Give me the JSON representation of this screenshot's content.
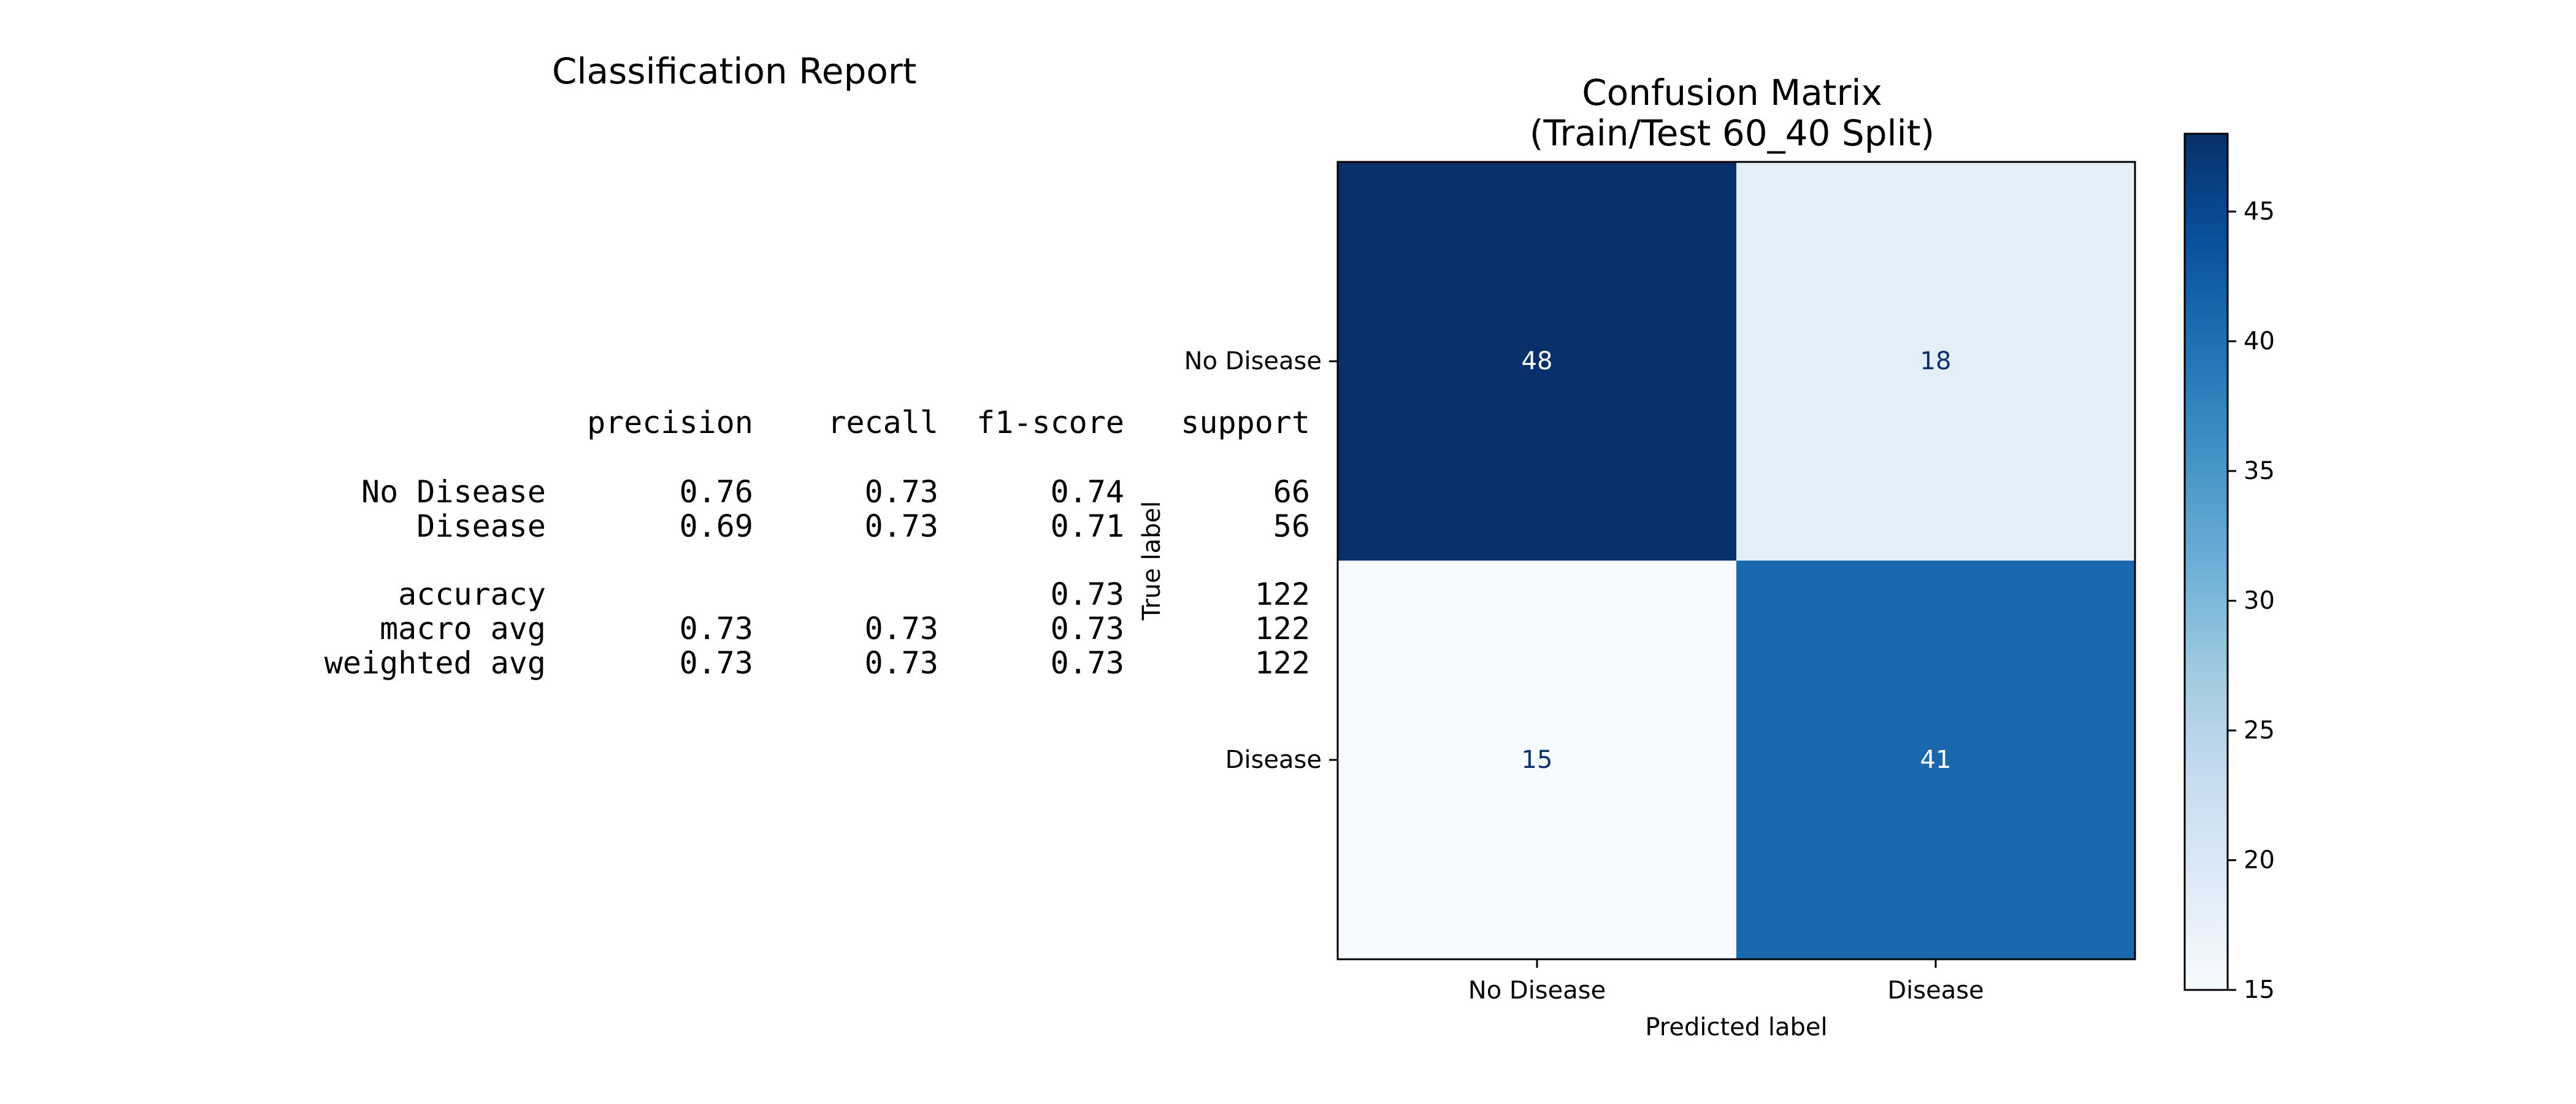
{
  "report": {
    "title": "Classification Report",
    "headers": [
      "precision",
      "recall",
      "f1-score",
      "support"
    ],
    "rows": [
      {
        "label": "No Disease",
        "values": [
          "0.76",
          "0.73",
          "0.74",
          "66"
        ]
      },
      {
        "label": "Disease",
        "values": [
          "0.69",
          "0.73",
          "0.71",
          "56"
        ]
      },
      {
        "label": "accuracy",
        "values": [
          "",
          "",
          "0.73",
          "122"
        ]
      },
      {
        "label": "macro avg",
        "values": [
          "0.73",
          "0.73",
          "0.73",
          "122"
        ]
      },
      {
        "label": "weighted avg",
        "values": [
          "0.73",
          "0.73",
          "0.73",
          "122"
        ]
      }
    ]
  },
  "chart_data": {
    "type": "heatmap",
    "title_line1": "Confusion Matrix",
    "title_line2": "(Train/Test 60_40 Split)",
    "xlabel": "Predicted label",
    "ylabel": "True label",
    "x_categories": [
      "No Disease",
      "Disease"
    ],
    "y_categories": [
      "No Disease",
      "Disease"
    ],
    "values": [
      [
        48,
        18
      ],
      [
        15,
        41
      ]
    ],
    "colormap": "Blues",
    "colorbar": {
      "min": 15,
      "max": 48,
      "ticks": [
        15,
        20,
        25,
        30,
        35,
        40,
        45
      ]
    }
  }
}
